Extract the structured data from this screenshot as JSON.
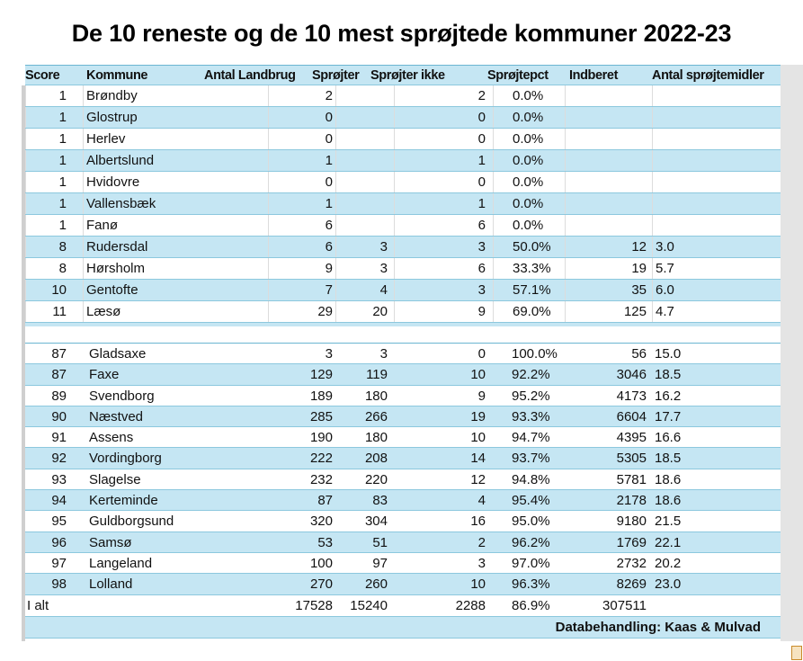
{
  "title": "De 10 reneste og de 10 mest sprøjtede kommuner 2022-23",
  "headers": [
    "Score",
    "Kommune",
    "Antal Landbrug",
    "Sprøjter",
    "Sprøjter ikke",
    "Sprøjtepct",
    "Indberet",
    "Antal sprøjtemidler"
  ],
  "top_rows": [
    [
      "1",
      "Brøndby",
      "2",
      "",
      "2",
      "0.0%",
      "",
      ""
    ],
    [
      "1",
      "Glostrup",
      "0",
      "",
      "0",
      "0.0%",
      "",
      ""
    ],
    [
      "1",
      "Herlev",
      "0",
      "",
      "0",
      "0.0%",
      "",
      ""
    ],
    [
      "1",
      "Albertslund",
      "1",
      "",
      "1",
      "0.0%",
      "",
      ""
    ],
    [
      "1",
      "Hvidovre",
      "0",
      "",
      "0",
      "0.0%",
      "",
      ""
    ],
    [
      "1",
      "Vallensbæk",
      "1",
      "",
      "1",
      "0.0%",
      "",
      ""
    ],
    [
      "1",
      "Fanø",
      "6",
      "",
      "6",
      "0.0%",
      "",
      ""
    ],
    [
      "8",
      "Rudersdal",
      "6",
      "3",
      "3",
      "50.0%",
      "12",
      "3.0"
    ],
    [
      "8",
      "Hørsholm",
      "9",
      "3",
      "6",
      "33.3%",
      "19",
      "5.7"
    ],
    [
      "10",
      "Gentofte",
      "7",
      "4",
      "3",
      "57.1%",
      "35",
      "6.0"
    ],
    [
      "11",
      "Læsø",
      "29",
      "20",
      "9",
      "69.0%",
      "125",
      "4.7"
    ]
  ],
  "bottom_rows": [
    [
      "87",
      "Gladsaxe",
      "3",
      "3",
      "0",
      "100.0%",
      "56",
      "15.0"
    ],
    [
      "87",
      "Faxe",
      "129",
      "119",
      "10",
      "92.2%",
      "3046",
      "18.5"
    ],
    [
      "89",
      "Svendborg",
      "189",
      "180",
      "9",
      "95.2%",
      "4173",
      "16.2"
    ],
    [
      "90",
      "Næstved",
      "285",
      "266",
      "19",
      "93.3%",
      "6604",
      "17.7"
    ],
    [
      "91",
      "Assens",
      "190",
      "180",
      "10",
      "94.7%",
      "4395",
      "16.6"
    ],
    [
      "92",
      "Vordingborg",
      "222",
      "208",
      "14",
      "93.7%",
      "5305",
      "18.5"
    ],
    [
      "93",
      "Slagelse",
      "232",
      "220",
      "12",
      "94.8%",
      "5781",
      "18.6"
    ],
    [
      "94",
      "Kerteminde",
      "87",
      "83",
      "4",
      "95.4%",
      "2178",
      "18.6"
    ],
    [
      "95",
      "Guldborgsund",
      "320",
      "304",
      "16",
      "95.0%",
      "9180",
      "21.5"
    ],
    [
      "96",
      "Samsø",
      "53",
      "51",
      "2",
      "96.2%",
      "1769",
      "22.1"
    ],
    [
      "97",
      "Langeland",
      "100",
      "97",
      "3",
      "97.0%",
      "2732",
      "20.2"
    ],
    [
      "98",
      "Lolland",
      "270",
      "260",
      "10",
      "96.3%",
      "8269",
      "23.0"
    ]
  ],
  "total": [
    "I alt",
    "",
    "17528",
    "15240",
    "2288",
    "86.9%",
    "307511",
    ""
  ],
  "footer": "Databehandling: Kaas & Mulvad"
}
